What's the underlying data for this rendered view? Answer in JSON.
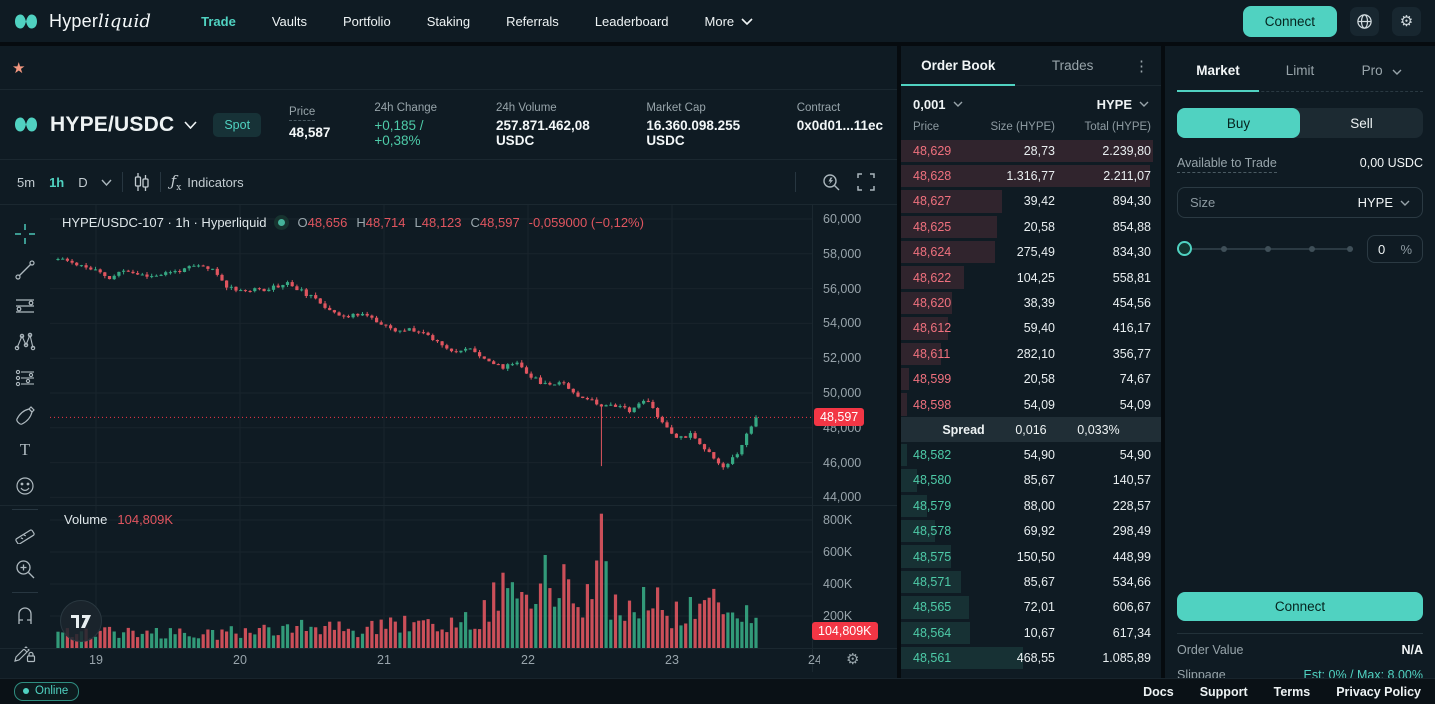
{
  "colors": {
    "accent": "#50d2c1",
    "up": "#36a883",
    "down": "#e0555f",
    "ask_text": "#f0717e",
    "bid_text": "#4ecba8",
    "axis_badge": "#f23645"
  },
  "nav": {
    "brand": "Hyperliquid",
    "items": [
      "Trade",
      "Vaults",
      "Portfolio",
      "Staking",
      "Referrals",
      "Leaderboard"
    ],
    "more_label": "More",
    "connect_label": "Connect"
  },
  "market_header": {
    "symbol": "HYPE/USDC",
    "badge": "Spot",
    "stats": [
      {
        "label": "Price",
        "value": "48,587"
      },
      {
        "label": "24h Change",
        "value": "+0,185 / +0,38%"
      },
      {
        "label": "24h Volume",
        "value": "257.871.462,08 USDC"
      },
      {
        "label": "Market Cap",
        "value": "16.360.098.255 USDC"
      },
      {
        "label": "Contract",
        "value": "0x0d01...11ec"
      }
    ]
  },
  "chart_toolbar": {
    "intervals": [
      "5m",
      "1h",
      "D"
    ],
    "active_interval": "1h",
    "indicators_label": "Indicators"
  },
  "chart_data": {
    "type": "candlestick+volume",
    "title": "HYPE/USDC-107 · 1h · Hyperliquid",
    "interval": "1h",
    "legend_items": [
      {
        "k": "O",
        "v": "48,656"
      },
      {
        "k": "H",
        "v": "48,714"
      },
      {
        "k": "L",
        "v": "48,123"
      },
      {
        "k": "C",
        "v": "48,597"
      }
    ],
    "change_text": "-0,059000 (−0,12%)",
    "volume_label": "Volume",
    "volume_display": "104,809K",
    "last_price": 48597,
    "last_price_label": "48,597",
    "y_axis": {
      "ticks": [
        {
          "v": 60000,
          "label": "60,000"
        },
        {
          "v": 58000,
          "label": "58,000"
        },
        {
          "v": 56000,
          "label": "56,000"
        },
        {
          "v": 54000,
          "label": "54,000"
        },
        {
          "v": 52000,
          "label": "52,000"
        },
        {
          "v": 50000,
          "label": "50,000"
        },
        {
          "v": 48000,
          "label": "48,000"
        },
        {
          "v": 46000,
          "label": "46,000"
        },
        {
          "v": 44000,
          "label": "44,000"
        }
      ]
    },
    "volume_axis": {
      "ticks": [
        {
          "v": 800,
          "label": "800K"
        },
        {
          "v": 600,
          "label": "600K"
        },
        {
          "v": 400,
          "label": "400K"
        },
        {
          "v": 200,
          "label": "200K"
        }
      ]
    },
    "x_axis": {
      "labels": [
        "19",
        "20",
        "21",
        "22",
        "23",
        "24"
      ]
    },
    "candle_count": 150,
    "price_path": [
      [
        0,
        57700
      ],
      [
        0.021,
        57500
      ],
      [
        0.057,
        57000
      ],
      [
        0.071,
        56500
      ],
      [
        0.093,
        57050
      ],
      [
        0.129,
        56700
      ],
      [
        0.164,
        56950
      ],
      [
        0.2,
        57300
      ],
      [
        0.221,
        57100
      ],
      [
        0.243,
        56100
      ],
      [
        0.271,
        55850
      ],
      [
        0.3,
        56000
      ],
      [
        0.329,
        56320
      ],
      [
        0.357,
        55650
      ],
      [
        0.386,
        54900
      ],
      [
        0.414,
        54300
      ],
      [
        0.436,
        54650
      ],
      [
        0.464,
        53900
      ],
      [
        0.486,
        53500
      ],
      [
        0.507,
        53700
      ],
      [
        0.529,
        53350
      ],
      [
        0.55,
        52800
      ],
      [
        0.571,
        52350
      ],
      [
        0.593,
        52550
      ],
      [
        0.614,
        51900
      ],
      [
        0.636,
        51450
      ],
      [
        0.657,
        51800
      ],
      [
        0.679,
        50900
      ],
      [
        0.7,
        50450
      ],
      [
        0.721,
        50700
      ],
      [
        0.743,
        49900
      ],
      [
        0.764,
        49600
      ],
      [
        0.779,
        49150
      ],
      [
        0.8,
        49300
      ],
      [
        0.821,
        48900
      ],
      [
        0.843,
        49650
      ],
      [
        0.864,
        48450
      ],
      [
        0.886,
        47400
      ],
      [
        0.907,
        47600
      ],
      [
        0.929,
        46700
      ],
      [
        0.95,
        45700
      ],
      [
        0.971,
        46400
      ],
      [
        0.993,
        48150
      ],
      [
        1,
        48597
      ]
    ],
    "volume_path_k": [
      [
        0,
        90
      ],
      [
        0.1,
        100
      ],
      [
        0.2,
        75
      ],
      [
        0.3,
        110
      ],
      [
        0.36,
        130
      ],
      [
        0.43,
        110
      ],
      [
        0.5,
        140
      ],
      [
        0.55,
        120
      ],
      [
        0.6,
        170
      ],
      [
        0.64,
        380
      ],
      [
        0.67,
        280
      ],
      [
        0.7,
        420
      ],
      [
        0.74,
        330
      ],
      [
        0.765,
        250
      ],
      [
        0.779,
        860
      ],
      [
        0.79,
        300
      ],
      [
        0.82,
        220
      ],
      [
        0.85,
        300
      ],
      [
        0.88,
        200
      ],
      [
        0.91,
        280
      ],
      [
        0.94,
        300
      ],
      [
        0.97,
        230
      ],
      [
        1,
        170
      ]
    ],
    "spike": {
      "t": 0.779,
      "low": 45800
    }
  },
  "order_book": {
    "tabs": [
      "Order Book",
      "Trades"
    ],
    "tick_size": "0,001",
    "unit": "HYPE",
    "columns": [
      "Price",
      "Size (HYPE)",
      "Total (HYPE)"
    ],
    "asks": [
      {
        "price": "48,629",
        "size": "28,73",
        "total": "2.239,80"
      },
      {
        "price": "48,628",
        "size": "1.316,77",
        "total": "2.211,07"
      },
      {
        "price": "48,627",
        "size": "39,42",
        "total": "894,30"
      },
      {
        "price": "48,625",
        "size": "20,58",
        "total": "854,88"
      },
      {
        "price": "48,624",
        "size": "275,49",
        "total": "834,30"
      },
      {
        "price": "48,622",
        "size": "104,25",
        "total": "558,81"
      },
      {
        "price": "48,620",
        "size": "38,39",
        "total": "454,56"
      },
      {
        "price": "48,612",
        "size": "59,40",
        "total": "416,17"
      },
      {
        "price": "48,611",
        "size": "282,10",
        "total": "356,77"
      },
      {
        "price": "48,599",
        "size": "20,58",
        "total": "74,67"
      },
      {
        "price": "48,598",
        "size": "54,09",
        "total": "54,09"
      }
    ],
    "spread": {
      "label": "Spread",
      "value": "0,016",
      "pct": "0,033%"
    },
    "bids": [
      {
        "price": "48,582",
        "size": "54,90",
        "total": "54,90"
      },
      {
        "price": "48,580",
        "size": "85,67",
        "total": "140,57"
      },
      {
        "price": "48,579",
        "size": "88,00",
        "total": "228,57"
      },
      {
        "price": "48,578",
        "size": "69,92",
        "total": "298,49"
      },
      {
        "price": "48,575",
        "size": "150,50",
        "total": "448,99"
      },
      {
        "price": "48,571",
        "size": "85,67",
        "total": "534,66"
      },
      {
        "price": "48,565",
        "size": "72,01",
        "total": "606,67"
      },
      {
        "price": "48,564",
        "size": "10,67",
        "total": "617,34"
      },
      {
        "price": "48,561",
        "size": "468,55",
        "total": "1.085,89"
      }
    ]
  },
  "trade_panel": {
    "tabs": [
      "Market",
      "Limit",
      "Pro"
    ],
    "buy_label": "Buy",
    "sell_label": "Sell",
    "available_label": "Available to Trade",
    "available_value": "0,00 USDC",
    "size_placeholder": "Size",
    "size_unit": "HYPE",
    "slider_value": "0",
    "slider_unit": "%",
    "connect_label": "Connect",
    "order_value_label": "Order Value",
    "order_value": "N/A",
    "slippage_label": "Slippage",
    "slippage_value": "Est: 0% / Max: 8,00%"
  },
  "footer": {
    "status": "Online",
    "links": [
      "Docs",
      "Support",
      "Terms",
      "Privacy Policy"
    ]
  }
}
